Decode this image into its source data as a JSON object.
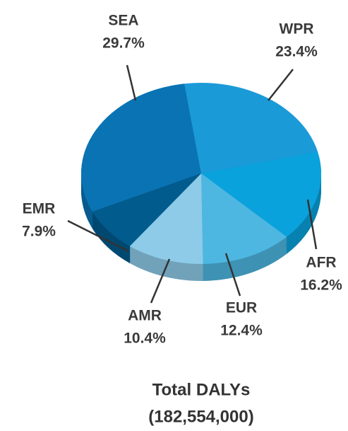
{
  "chart_data": {
    "type": "pie",
    "title": "Total DALYs",
    "subtitle": "(182,554,000)",
    "categories": [
      "SEA",
      "WPR",
      "AFR",
      "EUR",
      "AMR",
      "EMR"
    ],
    "values": [
      29.7,
      23.4,
      16.2,
      12.4,
      10.4,
      7.9
    ],
    "value_labels": [
      "29.7%",
      "23.4%",
      "16.2%",
      "12.4%",
      "10.4%",
      "7.9%"
    ],
    "colors": [
      "#0a73b3",
      "#1b9ad8",
      "#0aa2dc",
      "#4db7e1",
      "#8dcbe9",
      "#015b8d"
    ]
  }
}
